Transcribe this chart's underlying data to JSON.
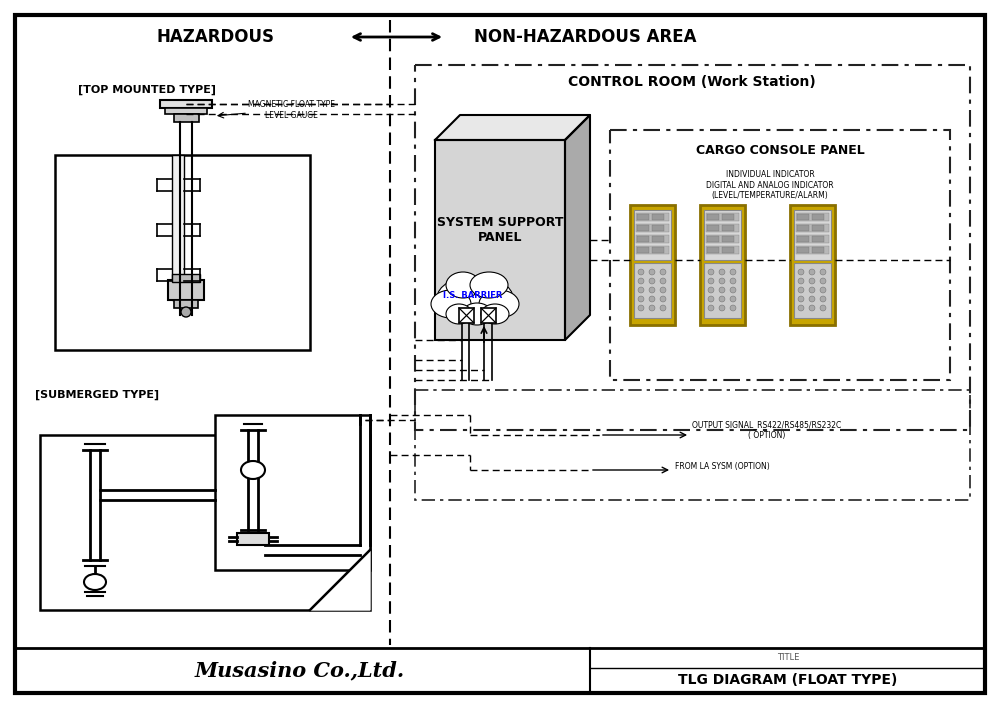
{
  "bg_color": "#ffffff",
  "hazardous_text": "HAZARDOUS",
  "non_hazardous_text": "NON-HAZARDOUS AREA",
  "top_mounted_label": "[TOP MOUNTED TYPE]",
  "submerged_label": "[SUBMERGED TYPE]",
  "control_room_label": "CONTROL ROOM (Work Station)",
  "cargo_console_label": "CARGO CONSOLE PANEL",
  "system_support_label": "SYSTEM SUPPORT\nPANEL",
  "is_barrier_label": "I.S. BARRIER",
  "indicator_label": "INDIVIDUAL INDICATOR\nDIGITAL AND ANALOG INDICATOR\n(LEVEL/TEMPERATURE/ALARM)",
  "output_signal_label": "OUTPUT SIGNAL_RS422/RS485/RS232C\n( OPTION)",
  "from_la_label": "FROM LA SYSM (OPTION)",
  "magnetic_float_label": "MAGNETIC FLOAT TYPE\nLEVEL GAUGE",
  "musasino_text": "Musasino Co.,Ltd.",
  "diagram_title": "TLG DIAGRAM (FLOAT TYPE)",
  "title_label": "TITLE"
}
